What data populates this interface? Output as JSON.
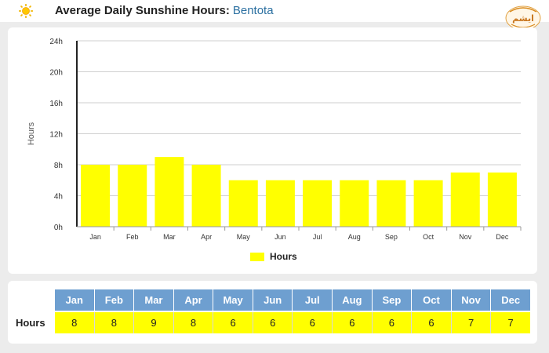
{
  "header": {
    "title": "Average Daily Sunshine Hours:",
    "location": "Bentota",
    "logo_text": "ایشم"
  },
  "colors": {
    "bar": "#ffff00",
    "month_header": "#6e9fd0",
    "title_location": "#2a6fa0"
  },
  "chart_data": {
    "type": "bar",
    "categories": [
      "Jan",
      "Feb",
      "Mar",
      "Apr",
      "May",
      "Jun",
      "Jul",
      "Aug",
      "Sep",
      "Oct",
      "Nov",
      "Dec"
    ],
    "series": [
      {
        "name": "Hours",
        "values": [
          8,
          8,
          9,
          8,
          6,
          6,
          6,
          6,
          6,
          6,
          7,
          7
        ]
      }
    ],
    "ylabel": "Hours",
    "ylim": [
      0,
      24
    ],
    "yticks": [
      "0h",
      "4h",
      "8h",
      "12h",
      "16h",
      "20h",
      "24h"
    ],
    "grid": true,
    "legend_position": "bottom-center"
  },
  "table": {
    "row_label": "Hours",
    "months": [
      "Jan",
      "Feb",
      "Mar",
      "Apr",
      "May",
      "Jun",
      "Jul",
      "Aug",
      "Sep",
      "Oct",
      "Nov",
      "Dec"
    ],
    "values": [
      "8",
      "8",
      "9",
      "8",
      "6",
      "6",
      "6",
      "6",
      "6",
      "6",
      "7",
      "7"
    ]
  }
}
